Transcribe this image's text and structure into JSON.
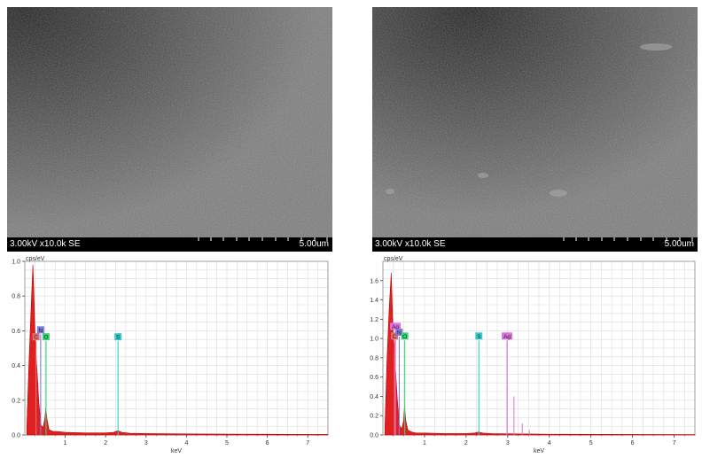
{
  "panels": [
    {
      "sem": {
        "label": "3.00kV x10.0k SE",
        "scale": "5.00um"
      },
      "chart_data": {
        "type": "line",
        "ylabel": "cps/eV",
        "xlabel": "keV",
        "xlim": [
          0,
          7.5
        ],
        "ylim": [
          0,
          1.0
        ],
        "x_ticks": [
          1,
          2,
          3,
          4,
          5,
          6,
          7
        ],
        "y_ticks": [
          0.0,
          0.2,
          0.4,
          0.6,
          0.8,
          1.0
        ],
        "y_tick_labels": [
          "0.0",
          "0.2",
          "0.4",
          "0.6",
          "0.8",
          "1.0"
        ],
        "series": [
          {
            "x": [
              0.05,
              0.1,
              0.15,
              0.2,
              0.22,
              0.25,
              0.28,
              0.3,
              0.35,
              0.4,
              0.45,
              0.5,
              0.52,
              0.55,
              0.6,
              0.7,
              0.8,
              1.0,
              1.5,
              2.0,
              2.2,
              2.3,
              2.4,
              2.6,
              3.0,
              4.0,
              5.0,
              6.0,
              7.0,
              7.5
            ],
            "y": [
              0.05,
              0.4,
              0.7,
              0.98,
              0.85,
              0.6,
              0.45,
              0.38,
              0.18,
              0.06,
              0.04,
              0.1,
              0.16,
              0.09,
              0.03,
              0.02,
              0.02,
              0.015,
              0.012,
              0.012,
              0.015,
              0.025,
              0.015,
              0.01,
              0.008,
              0.006,
              0.005,
              0.004,
              0.003,
              0.003
            ]
          }
        ],
        "peaks": [
          {
            "element": "C",
            "kev": 0.277,
            "height": 0.54,
            "color": "#e07070"
          },
          {
            "element": "N",
            "kev": 0.392,
            "height": 0.58,
            "color": "#7b7be0"
          },
          {
            "element": "O",
            "kev": 0.525,
            "height": 0.54,
            "color": "#3ad37a"
          },
          {
            "element": "S",
            "kev": 2.307,
            "height": 0.54,
            "color": "#33cccc"
          }
        ]
      }
    },
    {
      "sem": {
        "label": "3.00kV x10.0k SE",
        "scale": "5.00um"
      },
      "chart_data": {
        "type": "line",
        "ylabel": "cps/eV",
        "xlabel": "keV",
        "xlim": [
          0,
          7.5
        ],
        "ylim": [
          0,
          1.8
        ],
        "x_ticks": [
          1,
          2,
          3,
          4,
          5,
          6,
          7
        ],
        "y_ticks": [
          0.0,
          0.2,
          0.4,
          0.6,
          0.8,
          1.0,
          1.2,
          1.4,
          1.6
        ],
        "y_tick_labels": [
          "0.0",
          "0.2",
          "0.4",
          "0.6",
          "0.8",
          "1.0",
          "1.2",
          "1.4",
          "1.6"
        ],
        "series": [
          {
            "x": [
              0.05,
              0.1,
              0.15,
              0.2,
              0.22,
              0.25,
              0.28,
              0.3,
              0.35,
              0.4,
              0.45,
              0.5,
              0.52,
              0.55,
              0.6,
              0.7,
              0.8,
              1.0,
              1.5,
              2.0,
              2.2,
              2.3,
              2.4,
              2.6,
              2.9,
              3.0,
              3.1,
              3.3,
              3.5,
              4.0,
              5.0,
              6.0,
              7.0,
              7.5
            ],
            "y": [
              0.1,
              0.8,
              1.3,
              1.68,
              1.4,
              1.0,
              0.8,
              0.7,
              0.35,
              0.1,
              0.06,
              0.15,
              0.3,
              0.15,
              0.05,
              0.03,
              0.02,
              0.02,
              0.015,
              0.015,
              0.02,
              0.03,
              0.02,
              0.015,
              0.012,
              0.012,
              0.012,
              0.01,
              0.01,
              0.008,
              0.006,
              0.005,
              0.004,
              0.004
            ]
          }
        ],
        "peaks": [
          {
            "element": "Ag",
            "kev": 0.3,
            "height": 1.08,
            "color": "#e070e0"
          },
          {
            "element": "C",
            "kev": 0.277,
            "height": 0.98,
            "color": "#e07070"
          },
          {
            "element": "N",
            "kev": 0.392,
            "height": 1.02,
            "color": "#7b7be0"
          },
          {
            "element": "O",
            "kev": 0.525,
            "height": 0.98,
            "color": "#3ad37a"
          },
          {
            "element": "S",
            "kev": 2.307,
            "height": 0.98,
            "color": "#33cccc"
          },
          {
            "element": "Ag",
            "kev": 2.984,
            "height": 0.98,
            "color": "#e070e0"
          }
        ],
        "minor_lines": [
          {
            "kev": 3.15,
            "height": 0.4,
            "color": "#e070e0"
          },
          {
            "kev": 3.35,
            "height": 0.12,
            "color": "#e070e0"
          },
          {
            "kev": 3.52,
            "height": 0.05,
            "color": "#e070e0"
          }
        ]
      }
    }
  ]
}
